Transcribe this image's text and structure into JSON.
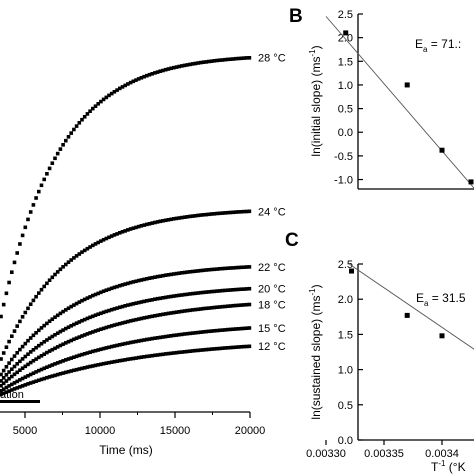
{
  "chart_data": [
    {
      "type": "scatter",
      "xlabel": "Time (ms)",
      "x_tick_labels": [
        "5000",
        "10000",
        "15000",
        "20000"
      ],
      "xlim": [
        2500,
        20000
      ],
      "y_range_note": "no y axis visible",
      "bar_annotation": "ation",
      "series": [
        {
          "name": "28 °C",
          "tau": 3900,
          "amplitude": 1.0,
          "visible_text": "28 °C"
        },
        {
          "name": "24 °C",
          "tau": 4400,
          "amplitude": 0.558,
          "visible_text": "24 °C"
        },
        {
          "name": "22 °C",
          "tau": 5000,
          "amplitude": 0.4,
          "visible_text": "22 °C"
        },
        {
          "name": "20 °C",
          "tau": 5600,
          "amplitude": 0.34,
          "visible_text": "20 °C"
        },
        {
          "name": "18 °C",
          "tau": 6500,
          "amplitude": 0.3,
          "visible_text": "18 °C"
        },
        {
          "name": "15 °C",
          "tau": 7500,
          "amplitude": 0.235,
          "visible_text": "15 °C"
        },
        {
          "name": "12 °C",
          "tau": 8800,
          "amplitude": 0.185,
          "visible_text": "12 °C"
        }
      ]
    },
    {
      "type": "scatter",
      "panel": "B",
      "ylabel": "ln(initial slope)  (ms",
      "ylabel_sup": "-1",
      "ylabel_end": ")",
      "ylim": [
        -1.2,
        2.5
      ],
      "y_ticks": [
        2.5,
        2.0,
        1.5,
        1.0,
        0.5,
        0.0,
        -0.5,
        -1.0
      ],
      "y_tick_labels": [
        "2.5",
        "2.0",
        "1.5",
        "1.0",
        "0.5",
        "0.0",
        "-0.5",
        "-1.0"
      ],
      "xlim": [
        0.00325,
        0.00345
      ],
      "annotation": "E",
      "annotation_sub": "a",
      "annotation_rest": " = 71.:",
      "points": [
        {
          "x": 0.003317,
          "y": 2.1
        },
        {
          "x": 0.00337,
          "y": 1.0
        },
        {
          "x": 0.0034,
          "y": -0.38
        },
        {
          "x": 0.003425,
          "y": -1.05
        }
      ],
      "fit_line": [
        {
          "x": 0.0033,
          "y": 2.45
        },
        {
          "x": 0.00343,
          "y": -1.25
        }
      ]
    },
    {
      "type": "scatter",
      "panel": "C",
      "ylabel": "ln(sustained slope)  (ms",
      "ylabel_sup": "-1",
      "ylabel_end": ")",
      "ylim": [
        0.0,
        2.5
      ],
      "y_ticks": [
        2.5,
        2.0,
        1.5,
        1.0,
        0.5,
        0.0
      ],
      "y_tick_labels": [
        "2.5",
        "2.0",
        "1.5",
        "1.0",
        "0.5",
        "0.0"
      ],
      "xlim": [
        0.00325,
        0.00345
      ],
      "x_ticks": [
        0.0033,
        0.00335,
        0.0034
      ],
      "x_tick_labels": [
        "0.00330",
        "0.00335",
        "0.0034"
      ],
      "xlabel": "T",
      "xlabel_sup": "-1",
      "xlabel_rest": " (°K",
      "annotation": "E",
      "annotation_sub": "a",
      "annotation_rest": " = 31.5",
      "points": [
        {
          "x": 0.003322,
          "y": 2.4
        },
        {
          "x": 0.00337,
          "y": 1.77
        },
        {
          "x": 0.0034,
          "y": 1.48
        },
        {
          "x": 0.00343,
          "y": 1.28
        }
      ],
      "fit_line": [
        {
          "x": 0.00332,
          "y": 2.5
        },
        {
          "x": 0.00344,
          "y": 1.15
        }
      ]
    }
  ]
}
